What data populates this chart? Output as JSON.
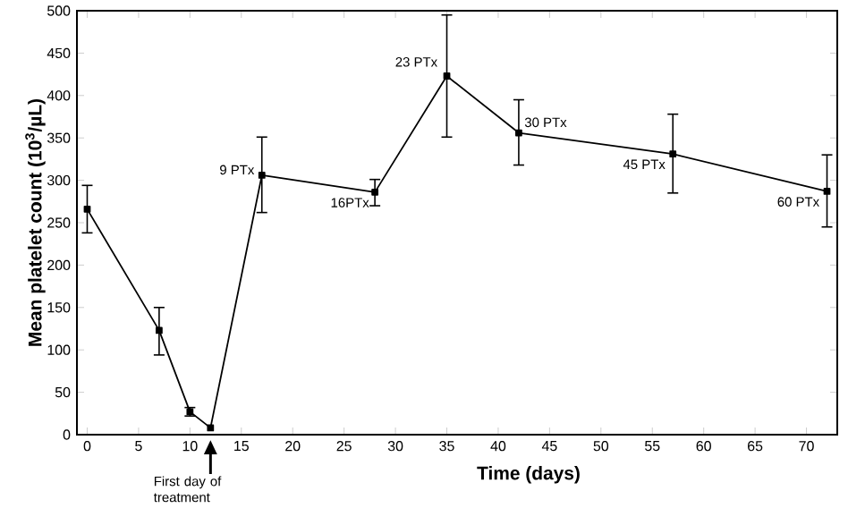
{
  "chart_data": {
    "type": "line",
    "xlabel": "Time (days)",
    "ylabel": "Mean platelet count (10$^{3}$/µL)",
    "x": [
      0,
      7,
      10,
      12,
      17,
      28,
      35,
      42,
      57,
      72
    ],
    "values": [
      266,
      123,
      27,
      8,
      306,
      286,
      423,
      356,
      331,
      287
    ],
    "errors": [
      [
        238,
        294
      ],
      [
        94,
        150
      ],
      [
        22,
        32
      ],
      null,
      [
        262,
        351
      ],
      [
        270,
        301
      ],
      [
        351,
        495
      ],
      [
        318,
        395
      ],
      [
        285,
        378
      ],
      [
        245,
        330
      ]
    ],
    "color": "#000000",
    "marker": "square",
    "line_style": "solid",
    "grid": false,
    "xlim": [
      -1,
      73
    ],
    "xticks": [
      0,
      5,
      10,
      15,
      20,
      25,
      30,
      35,
      40,
      45,
      50,
      55,
      60,
      65,
      70
    ],
    "ylim": [
      0,
      500
    ],
    "yticks": [
      0,
      50,
      100,
      150,
      200,
      250,
      300,
      350,
      400,
      450,
      500
    ],
    "annotations": [
      {
        "text": "9 PTx",
        "x": 17,
        "y": 306
      },
      {
        "text": "16PTx",
        "x": 28,
        "y": 286
      },
      {
        "text": "23 PTx",
        "x": 35,
        "y": 423
      },
      {
        "text": "30 PTx",
        "x": 42,
        "y": 356
      },
      {
        "text": "45 PTx",
        "x": 57,
        "y": 331
      },
      {
        "text": "60 PTx",
        "x": 72,
        "y": 287
      },
      "First day of treatment"
    ]
  }
}
